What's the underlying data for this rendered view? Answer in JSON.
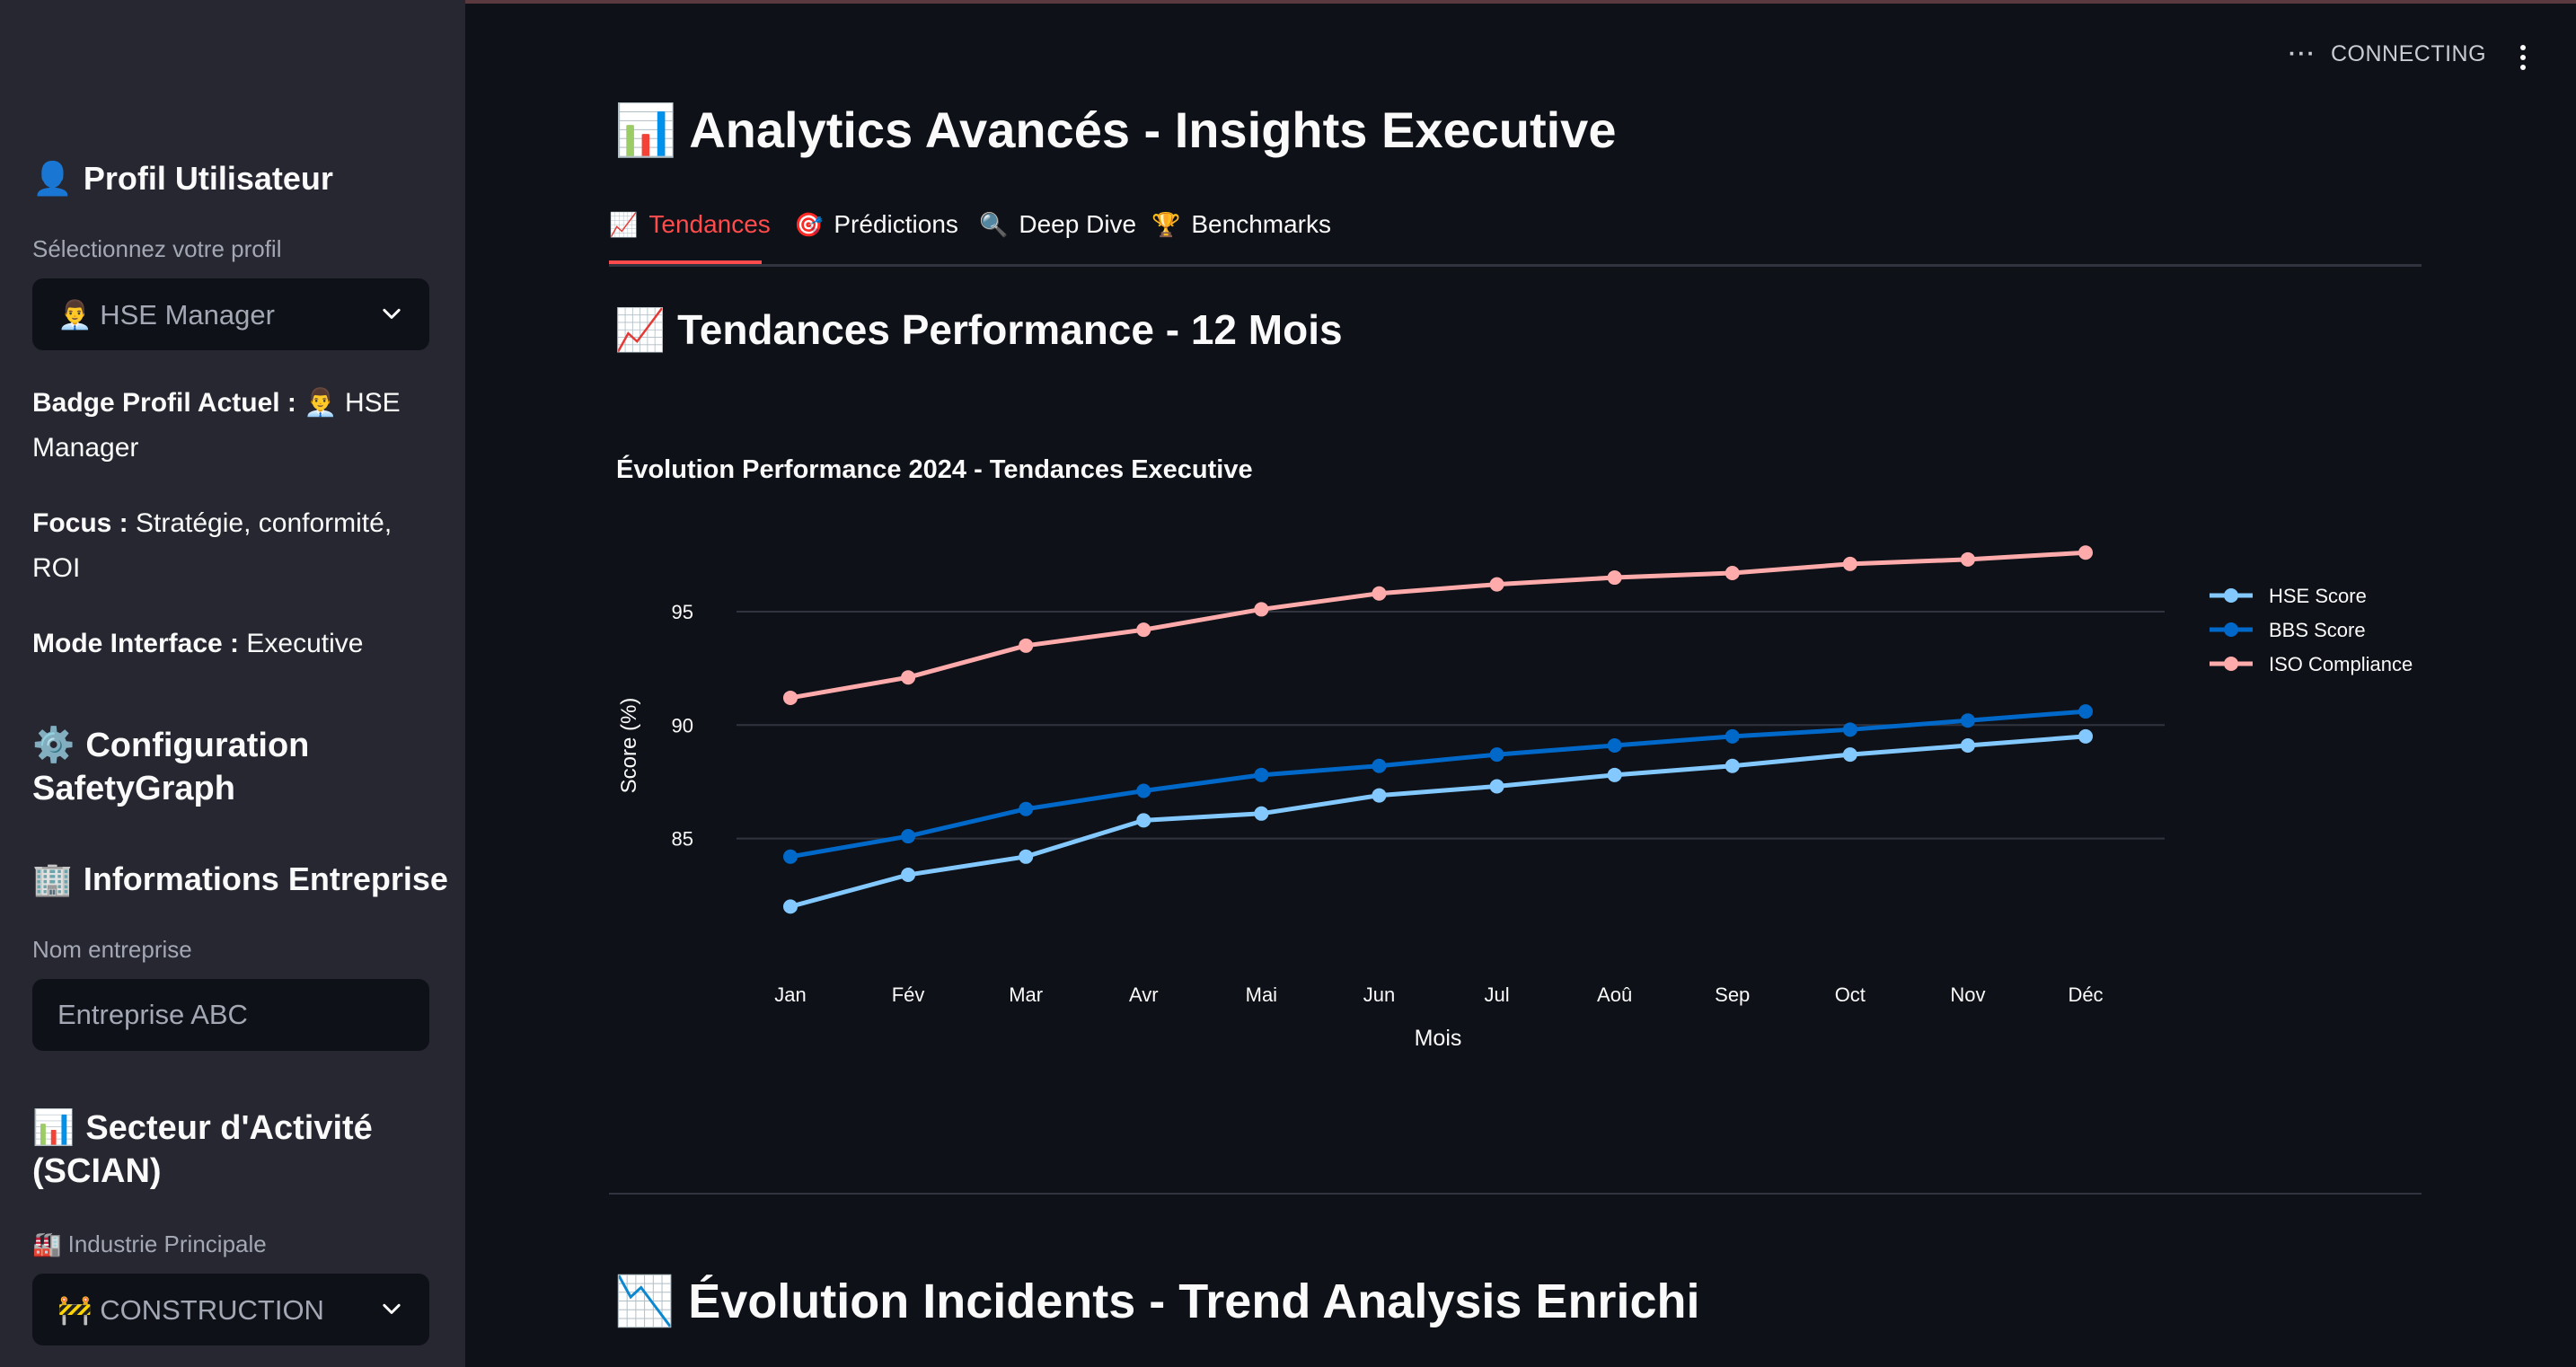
{
  "sidebar": {
    "profile_section": {
      "emoji": "👤",
      "title": "Profil Utilisateur"
    },
    "profile_select": {
      "label": "Sélectionnez votre profil",
      "emoji": "👨‍💼",
      "value": "HSE Manager",
      "icon": "chevron-down-icon"
    },
    "badge": {
      "label": "Badge Profil Actuel :",
      "emoji": "👨‍💼",
      "value": "HSE Manager"
    },
    "focus": {
      "label": "Focus :",
      "value": "Stratégie, conformité, ROI"
    },
    "mode": {
      "label": "Mode Interface :",
      "value": "Executive"
    },
    "config_section": {
      "emoji": "⚙️",
      "title": "Configuration SafetyGraph"
    },
    "company_section": {
      "emoji": "🏢",
      "title": "Informations Entreprise"
    },
    "company_input": {
      "label": "Nom entreprise",
      "placeholder": "Entreprise ABC"
    },
    "sector_section": {
      "emoji": "📊",
      "title": "Secteur d'Activité (SCIAN)"
    },
    "industry_select": {
      "label_emoji": "🏭",
      "label": "Industrie Principale",
      "emoji": "🚧",
      "value": "CONSTRUCTION",
      "icon": "chevron-down-icon"
    }
  },
  "header": {
    "status_text": "CONNECTING",
    "menu_icon": "kebab-menu-icon"
  },
  "main": {
    "title_emoji": "📊",
    "title": "Analytics Avancés - Insights Executive",
    "tabs": [
      {
        "emoji": "📈",
        "label": "Tendances",
        "active": true
      },
      {
        "emoji": "🎯",
        "label": "Prédictions",
        "active": false
      },
      {
        "emoji": "🔍",
        "label": "Deep Dive",
        "active": false
      },
      {
        "emoji": "🏆",
        "label": "Benchmarks",
        "active": false
      }
    ],
    "section1_emoji": "📈",
    "section1_title": "Tendances Performance - 12 Mois",
    "section2_emoji": "📉",
    "section2_title": "Évolution Incidents - Trend Analysis Enrichi"
  },
  "chart_data": {
    "type": "line",
    "title": "Évolution Performance 2024 - Tendances Executive",
    "xlabel": "Mois",
    "ylabel": "Score (%)",
    "categories": [
      "Jan",
      "Fév",
      "Mar",
      "Avr",
      "Mai",
      "Jun",
      "Jul",
      "Aoû",
      "Sep",
      "Oct",
      "Nov",
      "Déc"
    ],
    "ylim": [
      79.6,
      98.6
    ],
    "yticks": [
      85,
      90,
      95
    ],
    "grid": true,
    "legend": "right",
    "series": [
      {
        "name": "HSE Score",
        "color": "#83c9ff",
        "values": [
          82.0,
          83.4,
          84.2,
          85.8,
          86.1,
          86.9,
          87.3,
          87.8,
          88.2,
          88.7,
          89.1,
          89.5
        ]
      },
      {
        "name": "BBS Score",
        "color": "#0068c9",
        "values": [
          84.2,
          85.1,
          86.3,
          87.1,
          87.8,
          88.2,
          88.7,
          89.1,
          89.5,
          89.8,
          90.2,
          90.6
        ]
      },
      {
        "name": "ISO Compliance",
        "color": "#ffabab",
        "values": [
          91.2,
          92.1,
          93.5,
          94.2,
          95.1,
          95.8,
          96.2,
          96.5,
          96.7,
          97.1,
          97.3,
          97.6
        ]
      }
    ]
  }
}
